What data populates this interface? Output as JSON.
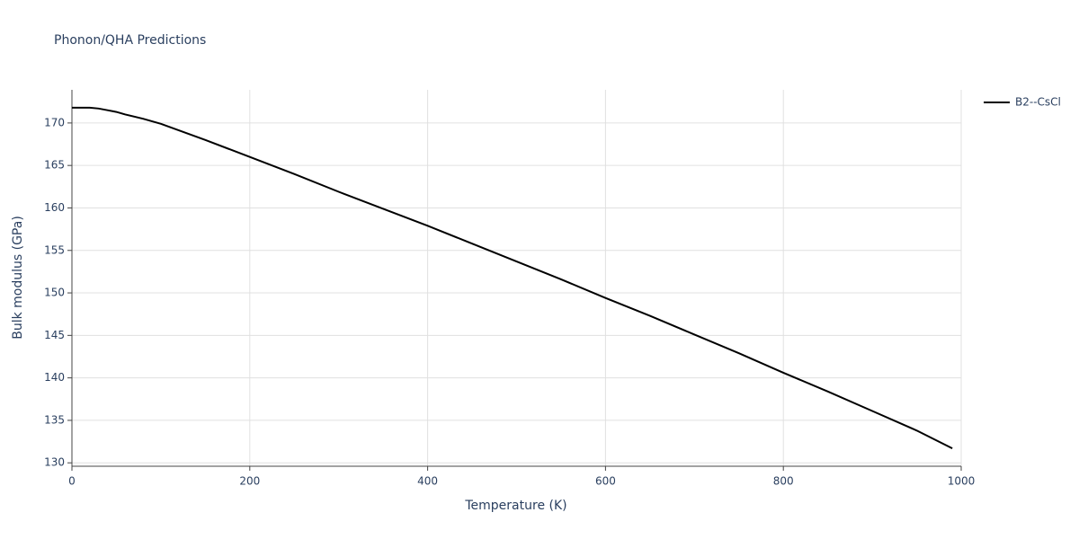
{
  "chart_data": {
    "type": "line",
    "title": "Phonon/QHA Predictions",
    "x_label": "Temperature (K)",
    "y_label": "Bulk modulus (GPa)",
    "x": [
      0,
      10,
      20,
      30,
      40,
      50,
      60,
      80,
      100,
      150,
      200,
      250,
      300,
      350,
      400,
      450,
      500,
      550,
      600,
      650,
      700,
      750,
      800,
      850,
      900,
      950,
      990
    ],
    "series": [
      {
        "name": "B2--CsCl",
        "color": "#000000",
        "values": [
          171.8,
          171.8,
          171.8,
          171.7,
          171.5,
          171.3,
          171.0,
          170.5,
          169.9,
          168.0,
          166.0,
          164.0,
          161.9,
          159.9,
          157.9,
          155.8,
          153.7,
          151.6,
          149.4,
          147.3,
          145.1,
          142.9,
          140.6,
          138.4,
          136.1,
          133.8,
          131.7
        ]
      }
    ],
    "xlim": [
      0,
      1000
    ],
    "xticks": [
      0,
      200,
      400,
      600,
      800,
      1000
    ],
    "ylim": [
      129.6,
      173.9
    ],
    "yticks": [
      130,
      135,
      140,
      145,
      150,
      155,
      160,
      165,
      170
    ],
    "grid": true,
    "legend": "right"
  }
}
